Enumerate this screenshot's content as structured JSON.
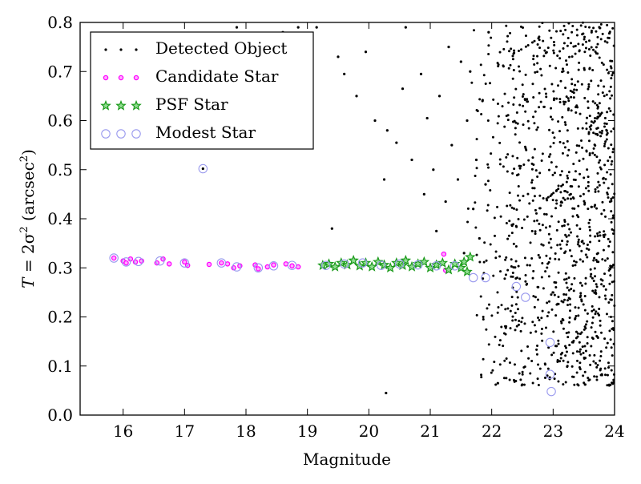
{
  "chart_data": {
    "type": "scatter",
    "title": "",
    "xlabel": "Magnitude",
    "ylabel": {
      "prefix": "T",
      "eq": " = 2σ",
      "sup": "2",
      "paren_open": " (arcsec",
      "unit_sup": "2",
      "paren_close": ")"
    },
    "xlim": [
      15.3,
      24
    ],
    "ylim": [
      0.0,
      0.8
    ],
    "x_ticks": [
      16,
      17,
      18,
      19,
      20,
      21,
      22,
      23,
      24
    ],
    "y_ticks": [
      0.0,
      0.1,
      0.2,
      0.3,
      0.4,
      0.5,
      0.6,
      0.7,
      0.8
    ],
    "x_tick_labels": [
      "16",
      "17",
      "18",
      "19",
      "20",
      "21",
      "22",
      "23",
      "24"
    ],
    "y_tick_labels": [
      "0.0",
      "0.1",
      "0.2",
      "0.3",
      "0.4",
      "0.5",
      "0.6",
      "0.7",
      "0.8"
    ],
    "grid": false,
    "legend_position": "top-left",
    "series": [
      {
        "name": "Detected Object",
        "marker": "dot",
        "color": "#000000",
        "points": [
          [
            17.3,
            0.502
          ],
          [
            17.85,
            0.79
          ],
          [
            18.85,
            0.79
          ],
          [
            19.15,
            0.79
          ],
          [
            19.5,
            0.73
          ],
          [
            19.6,
            0.695
          ],
          [
            19.8,
            0.65
          ],
          [
            19.95,
            0.74
          ],
          [
            20.1,
            0.6
          ],
          [
            20.25,
            0.48
          ],
          [
            20.3,
            0.58
          ],
          [
            20.45,
            0.555
          ],
          [
            20.55,
            0.665
          ],
          [
            20.7,
            0.52
          ],
          [
            20.85,
            0.695
          ],
          [
            20.9,
            0.45
          ],
          [
            20.95,
            0.605
          ],
          [
            21.05,
            0.5
          ],
          [
            21.1,
            0.375
          ],
          [
            21.15,
            0.65
          ],
          [
            21.25,
            0.435
          ],
          [
            21.3,
            0.75
          ],
          [
            21.35,
            0.55
          ],
          [
            21.45,
            0.48
          ],
          [
            21.55,
            0.33
          ],
          [
            21.6,
            0.6
          ],
          [
            21.65,
            0.7
          ],
          [
            21.7,
            0.42
          ],
          [
            21.75,
            0.52
          ],
          [
            21.8,
            0.36
          ],
          [
            21.85,
            0.64
          ],
          [
            21.9,
            0.47
          ],
          [
            21.95,
            0.78
          ],
          [
            20.28,
            0.045
          ],
          [
            22.1,
            0.065
          ],
          [
            19.4,
            0.38
          ],
          [
            18.6,
            0.78
          ],
          [
            19.0,
            0.62
          ],
          [
            20.6,
            0.79
          ],
          [
            21.5,
            0.72
          ]
        ]
      },
      {
        "name": "Candidate Star",
        "marker": "small-circle",
        "color": "#ff00ff",
        "points": [
          [
            15.85,
            0.32
          ],
          [
            16.0,
            0.314
          ],
          [
            16.05,
            0.31
          ],
          [
            16.12,
            0.318
          ],
          [
            16.2,
            0.312
          ],
          [
            16.3,
            0.314
          ],
          [
            16.55,
            0.31
          ],
          [
            16.65,
            0.318
          ],
          [
            16.75,
            0.308
          ],
          [
            17.0,
            0.312
          ],
          [
            17.05,
            0.305
          ],
          [
            17.4,
            0.307
          ],
          [
            17.6,
            0.31
          ],
          [
            17.7,
            0.308
          ],
          [
            17.8,
            0.3
          ],
          [
            17.9,
            0.304
          ],
          [
            18.15,
            0.306
          ],
          [
            18.2,
            0.298
          ],
          [
            18.35,
            0.302
          ],
          [
            18.45,
            0.306
          ],
          [
            18.65,
            0.308
          ],
          [
            18.75,
            0.304
          ],
          [
            18.85,
            0.302
          ],
          [
            21.22,
            0.328
          ],
          [
            21.25,
            0.295
          ]
        ]
      },
      {
        "name": "PSF Star",
        "marker": "star",
        "color": "#1a9a1a",
        "points": [
          [
            19.25,
            0.305
          ],
          [
            19.35,
            0.308
          ],
          [
            19.45,
            0.302
          ],
          [
            19.55,
            0.31
          ],
          [
            19.65,
            0.306
          ],
          [
            19.75,
            0.315
          ],
          [
            19.85,
            0.304
          ],
          [
            19.95,
            0.31
          ],
          [
            20.05,
            0.302
          ],
          [
            20.15,
            0.312
          ],
          [
            20.25,
            0.306
          ],
          [
            20.35,
            0.3
          ],
          [
            20.45,
            0.31
          ],
          [
            20.55,
            0.305
          ],
          [
            20.6,
            0.315
          ],
          [
            20.7,
            0.302
          ],
          [
            20.8,
            0.308
          ],
          [
            20.9,
            0.312
          ],
          [
            21.0,
            0.3
          ],
          [
            21.1,
            0.306
          ],
          [
            21.2,
            0.31
          ],
          [
            21.3,
            0.296
          ],
          [
            21.4,
            0.308
          ],
          [
            21.5,
            0.3
          ],
          [
            21.55,
            0.312
          ],
          [
            21.6,
            0.292
          ],
          [
            21.65,
            0.322
          ]
        ]
      },
      {
        "name": "Modest Star",
        "marker": "open-circle",
        "color": "#9999ee",
        "points": [
          [
            17.3,
            0.502
          ],
          [
            15.85,
            0.32
          ],
          [
            16.05,
            0.312
          ],
          [
            16.25,
            0.313
          ],
          [
            16.6,
            0.314
          ],
          [
            17.0,
            0.31
          ],
          [
            17.6,
            0.31
          ],
          [
            17.85,
            0.302
          ],
          [
            18.2,
            0.3
          ],
          [
            18.45,
            0.304
          ],
          [
            18.75,
            0.305
          ],
          [
            19.3,
            0.305
          ],
          [
            19.6,
            0.308
          ],
          [
            19.9,
            0.31
          ],
          [
            20.2,
            0.305
          ],
          [
            20.5,
            0.308
          ],
          [
            20.8,
            0.306
          ],
          [
            21.1,
            0.304
          ],
          [
            21.4,
            0.304
          ],
          [
            21.7,
            0.28
          ],
          [
            21.9,
            0.28
          ],
          [
            22.4,
            0.262
          ],
          [
            22.55,
            0.24
          ],
          [
            22.95,
            0.148
          ],
          [
            22.95,
            0.083
          ],
          [
            22.97,
            0.048
          ]
        ]
      }
    ]
  }
}
